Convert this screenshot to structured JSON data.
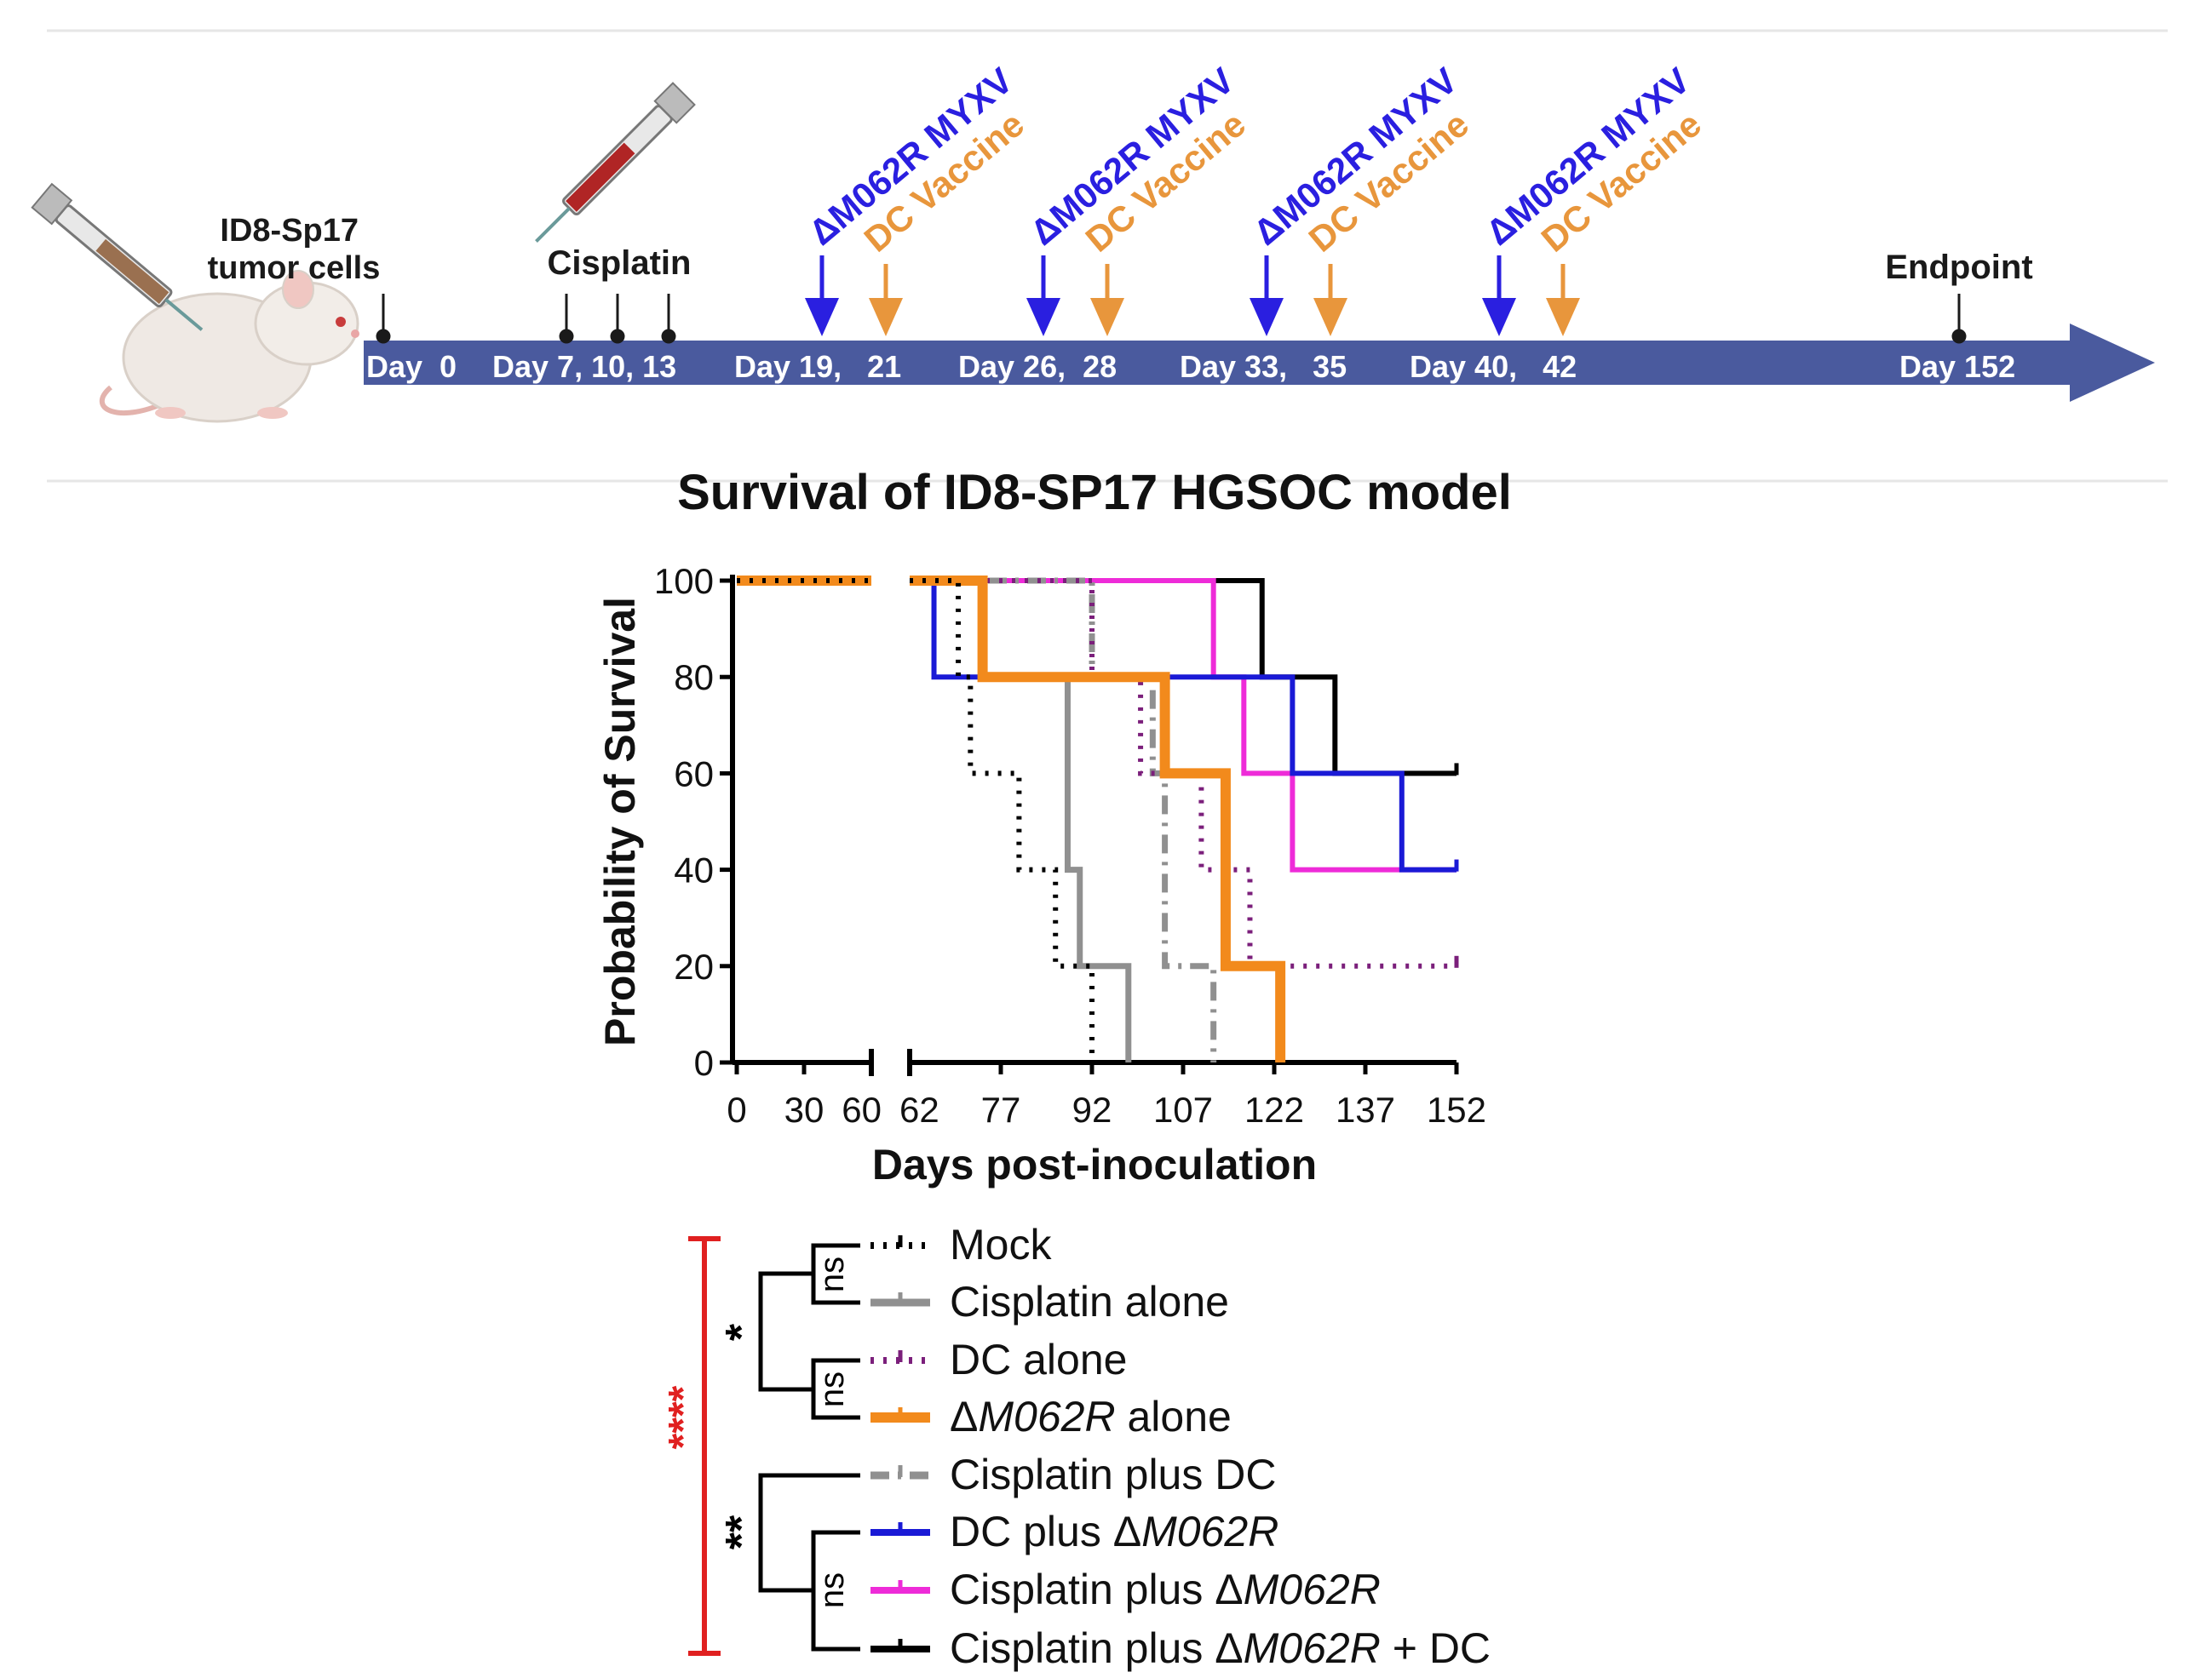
{
  "timeline": {
    "tumor_label": [
      "ID8-Sp17",
      "tumor cells"
    ],
    "cisplatin_label": "Cisplatin",
    "endpoint_label": "Endpoint",
    "virus_label": "ΔM062R MYXV",
    "vaccine_label": "DC Vaccine",
    "day_labels": [
      "Day  0",
      "Day 7, 10, 13",
      "Day 19,   21",
      "Day 26,  28",
      "Day 33,   35",
      "Day 40,   42",
      "Day 152"
    ],
    "colors": {
      "arrow": "#4a5a9e",
      "virus": "#2a1fe0",
      "vaccine": "#e8963c"
    }
  },
  "chart_data": {
    "type": "line",
    "title": "Survival of ID8-SP17 HGSOC model",
    "xlabel": "Days post-inoculation",
    "ylabel": "Probability of Survival",
    "ylim": [
      0,
      100
    ],
    "y_ticks": [
      "0",
      "20",
      "40",
      "60",
      "80",
      "100"
    ],
    "x_axis_break": [
      60,
      62
    ],
    "x_ticks": [
      "0",
      "30",
      "60",
      "62",
      "77",
      "92",
      "107",
      "122",
      "137",
      "152"
    ],
    "series": [
      {
        "name": "Mock",
        "color": "#000000",
        "dash": "dotted",
        "points": [
          [
            0,
            100
          ],
          [
            70,
            100
          ],
          [
            70,
            80
          ],
          [
            72,
            80
          ],
          [
            72,
            60
          ],
          [
            80,
            60
          ],
          [
            80,
            40
          ],
          [
            86,
            40
          ],
          [
            86,
            20
          ],
          [
            92,
            20
          ],
          [
            92,
            0
          ]
        ]
      },
      {
        "name": "Cisplatin alone",
        "color": "#909090",
        "dash": "solid",
        "points": [
          [
            0,
            100
          ],
          [
            74,
            100
          ],
          [
            74,
            80
          ],
          [
            88,
            80
          ],
          [
            88,
            40
          ],
          [
            90,
            40
          ],
          [
            90,
            20
          ],
          [
            98,
            20
          ],
          [
            98,
            0
          ]
        ]
      },
      {
        "name": "DC alone",
        "color": "#7b1f7b",
        "dash": "dotted",
        "points": [
          [
            0,
            100
          ],
          [
            92,
            100
          ],
          [
            92,
            80
          ],
          [
            100,
            80
          ],
          [
            100,
            60
          ],
          [
            110,
            60
          ],
          [
            110,
            40
          ],
          [
            118,
            40
          ],
          [
            118,
            20
          ],
          [
            152,
            20
          ]
        ]
      },
      {
        "name": "ΔM062R alone",
        "color": "#f28a1c",
        "dash": "solid",
        "points": [
          [
            0,
            100
          ],
          [
            74,
            100
          ],
          [
            74,
            80
          ],
          [
            104,
            80
          ],
          [
            104,
            60
          ],
          [
            114,
            60
          ],
          [
            114,
            20
          ],
          [
            123,
            20
          ],
          [
            123,
            0
          ]
        ]
      },
      {
        "name": "Cisplatin plus DC",
        "color": "#909090",
        "dash": "dashdot",
        "points": [
          [
            0,
            100
          ],
          [
            92,
            100
          ],
          [
            92,
            80
          ],
          [
            102,
            80
          ],
          [
            102,
            60
          ],
          [
            104,
            60
          ],
          [
            104,
            20
          ],
          [
            112,
            20
          ],
          [
            112,
            0
          ]
        ]
      },
      {
        "name": "DC plus ΔM062R",
        "color": "#1a1ad6",
        "dash": "solid",
        "points": [
          [
            0,
            100
          ],
          [
            66,
            100
          ],
          [
            66,
            80
          ],
          [
            125,
            80
          ],
          [
            125,
            60
          ],
          [
            143,
            60
          ],
          [
            143,
            40
          ],
          [
            152,
            40
          ]
        ]
      },
      {
        "name": "Cisplatin plus ΔM062R",
        "color": "#ee2bd8",
        "dash": "solid",
        "points": [
          [
            0,
            100
          ],
          [
            112,
            100
          ],
          [
            112,
            80
          ],
          [
            117,
            80
          ],
          [
            117,
            60
          ],
          [
            125,
            60
          ],
          [
            125,
            40
          ],
          [
            152,
            40
          ]
        ]
      },
      {
        "name": "Cisplatin plus ΔM062R + DC",
        "color": "#000000",
        "dash": "solid",
        "points": [
          [
            0,
            100
          ],
          [
            120,
            100
          ],
          [
            120,
            80
          ],
          [
            132,
            80
          ],
          [
            132,
            60
          ],
          [
            152,
            60
          ]
        ]
      }
    ],
    "legend": {
      "entries": [
        {
          "prefix": "",
          "italic": "",
          "suffix": "Mock"
        },
        {
          "prefix": "",
          "italic": "",
          "suffix": "Cisplatin alone"
        },
        {
          "prefix": "",
          "italic": "",
          "suffix": "DC alone"
        },
        {
          "prefix": "Δ",
          "italic": "M062R",
          "suffix": " alone"
        },
        {
          "prefix": "",
          "italic": "",
          "suffix": "Cisplatin plus DC"
        },
        {
          "prefix": "DC plus Δ",
          "italic": "M062R",
          "suffix": ""
        },
        {
          "prefix": "Cisplatin plus Δ",
          "italic": "M062R",
          "suffix": ""
        },
        {
          "prefix": "Cisplatin plus Δ",
          "italic": "M062R",
          "suffix": " + DC"
        }
      ],
      "significance": {
        "all": "****",
        "single_groups": "*",
        "combo_groups": "**",
        "not_significant": "ns"
      },
      "significance_color": "#e02020"
    }
  }
}
